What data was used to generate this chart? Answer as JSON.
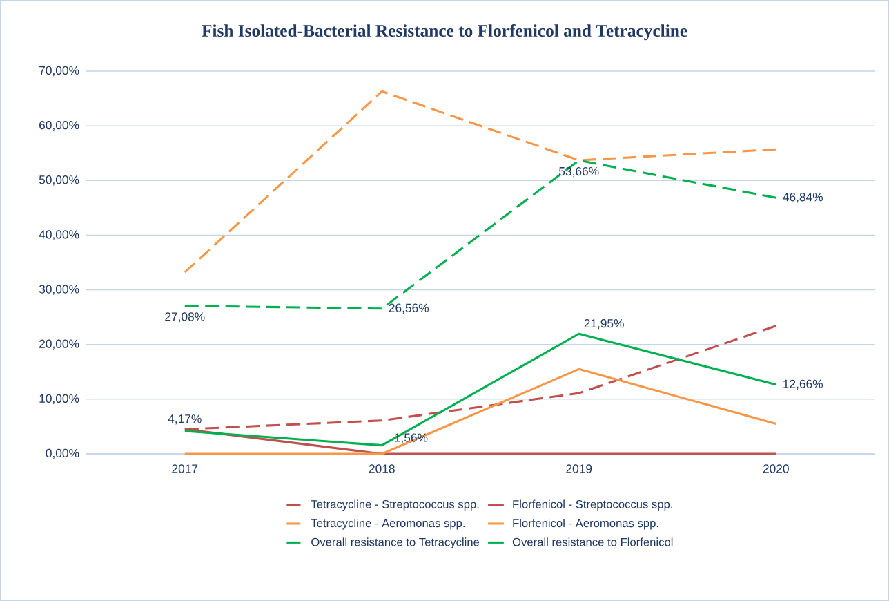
{
  "chart_data": {
    "type": "line",
    "title": "Fish Isolated-Bacterial Resistance to Florfenicol and Tetracycline",
    "categories": [
      "2017",
      "2018",
      "2019",
      "2020"
    ],
    "series": [
      {
        "name": "Tetracycline - Streptococcus spp.",
        "color": "#c0504d",
        "line_style": "dashed",
        "values": [
          4.5,
          6.1,
          11.1,
          23.4
        ]
      },
      {
        "name": "Florfenicol - Streptococcus spp.",
        "color": "#c0504d",
        "line_style": "solid",
        "values": [
          4.5,
          0,
          0,
          0
        ]
      },
      {
        "name": "Tetracycline - Aeromonas spp.",
        "color": "#f79646",
        "line_style": "dashed",
        "values": [
          33.2,
          66.3,
          53.7,
          55.7
        ]
      },
      {
        "name": "Florfenicol - Aeromonas spp.",
        "color": "#f79646",
        "line_style": "solid",
        "values": [
          0,
          0,
          15.5,
          5.5
        ]
      },
      {
        "name": "Overall resistance to Tetracycline",
        "color": "#00b050",
        "line_style": "dashed",
        "values": [
          27.08,
          26.56,
          53.66,
          46.84
        ],
        "value_labels": [
          "27,08%",
          "26,56%",
          "53,66%",
          "46,84%"
        ]
      },
      {
        "name": "Overall resistance to Florfenicol",
        "color": "#00b050",
        "line_style": "solid",
        "values": [
          4.17,
          1.56,
          21.95,
          12.66
        ],
        "value_labels": [
          "4,17%",
          "1,56%",
          "21,95%",
          "12,66%"
        ]
      }
    ],
    "ylim": [
      0,
      70
    ],
    "yticks": [
      {
        "value": 0,
        "label": "0,00%"
      },
      {
        "value": 10,
        "label": "10,00%"
      },
      {
        "value": 20,
        "label": "20,00%"
      },
      {
        "value": 30,
        "label": "30,00%"
      },
      {
        "value": 40,
        "label": "40,00%"
      },
      {
        "value": 50,
        "label": "50,00%"
      },
      {
        "value": 60,
        "label": "60,00%"
      },
      {
        "value": 70,
        "label": "70,00%"
      }
    ],
    "grid": "y",
    "legend": "bottom",
    "marker": "none"
  }
}
